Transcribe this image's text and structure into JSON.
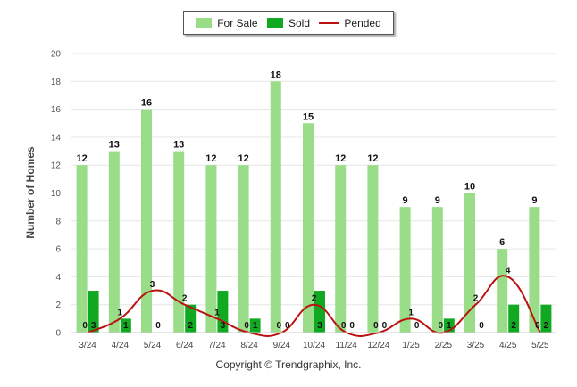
{
  "legend": {
    "for_sale": "For Sale",
    "sold": "Sold",
    "pended": "Pended"
  },
  "footer": "Copyright © Trendgraphix, Inc.",
  "colors": {
    "for_sale": "#99dd88",
    "sold": "#11a822",
    "pended": "#bb1111"
  },
  "chart_data": {
    "type": "bar",
    "categories": [
      "3/24",
      "4/24",
      "5/24",
      "6/24",
      "7/24",
      "8/24",
      "9/24",
      "10/24",
      "11/24",
      "12/24",
      "1/25",
      "2/25",
      "3/25",
      "4/25",
      "5/25"
    ],
    "series": [
      {
        "name": "For Sale",
        "type": "bar",
        "values": [
          12,
          13,
          16,
          13,
          12,
          12,
          18,
          15,
          12,
          12,
          9,
          9,
          10,
          6,
          9
        ]
      },
      {
        "name": "Sold",
        "type": "bar",
        "values": [
          3,
          1,
          0,
          2,
          3,
          1,
          0,
          3,
          0,
          0,
          0,
          1,
          0,
          2,
          2
        ]
      },
      {
        "name": "Pended",
        "type": "line",
        "values": [
          0,
          1,
          3,
          2,
          1,
          0,
          0,
          2,
          0,
          0,
          1,
          0,
          2,
          4,
          0
        ]
      }
    ],
    "xlabel": "",
    "ylabel": "Number of Homes",
    "ylim": [
      0,
      20
    ],
    "yticks": [
      0,
      2,
      4,
      6,
      8,
      10,
      12,
      14,
      16,
      18,
      20
    ],
    "grid": true,
    "legend_position": "top-center"
  }
}
